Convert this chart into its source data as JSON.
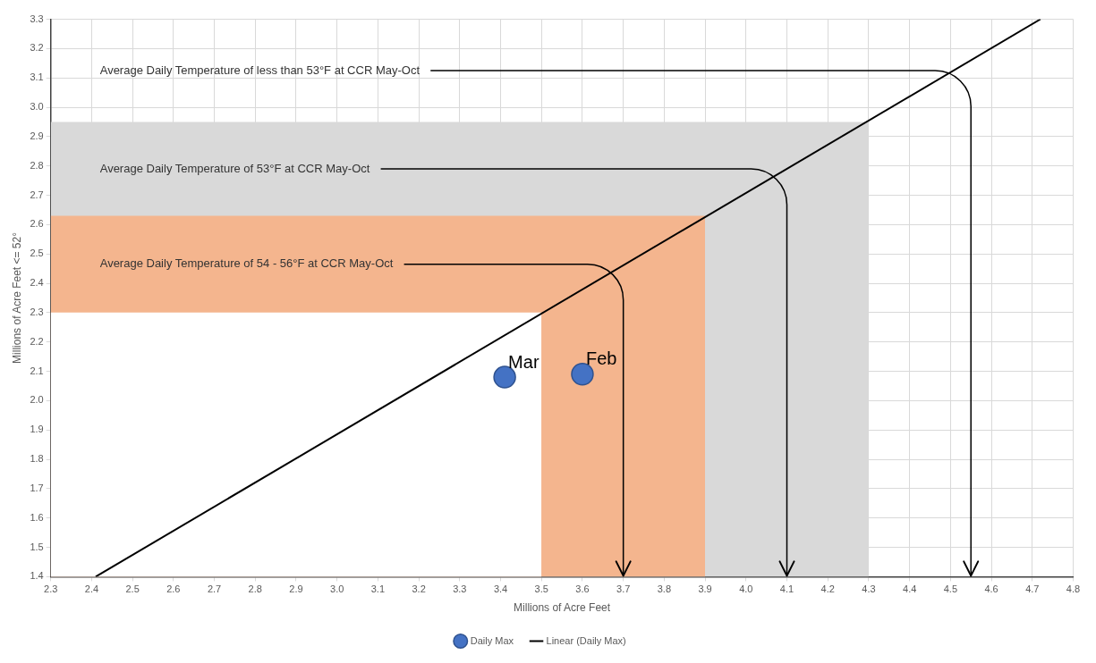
{
  "chart_data": {
    "type": "scatter",
    "xlabel": "Millions of Acre Feet",
    "ylabel": "Millions of Acre Feet <= 52°",
    "xlim": [
      2.3,
      4.8
    ],
    "ylim": [
      1.4,
      3.3
    ],
    "xticks": [
      2.3,
      2.4,
      2.5,
      2.6,
      2.7,
      2.8,
      2.9,
      {
        "value": 3,
        "label": "3.0"
      },
      3.1,
      3.2,
      3.3,
      3.4,
      3.5,
      3.6,
      3.7,
      3.8,
      3.9,
      {
        "value": 4,
        "label": "4.0"
      },
      4.1,
      4.2,
      4.3,
      4.4,
      4.5,
      4.6,
      4.7,
      4.8
    ],
    "yticks": [
      1.4,
      1.5,
      1.6,
      1.7,
      1.8,
      1.9,
      {
        "value": 2,
        "label": "2.0"
      },
      2.1,
      2.2,
      2.3,
      2.4,
      2.5,
      2.6,
      2.7,
      2.8,
      2.9,
      {
        "value": 3,
        "label": "3.0"
      },
      3.1,
      3.2,
      3.3
    ],
    "grid": true,
    "legend": "bottom",
    "marker": "circle",
    "series": [
      {
        "type": "area",
        "color": "#d9d9d9",
        "marker": "none",
        "x": [
          2.3,
          4.3
        ],
        "values": [
          2.95,
          2.95
        ]
      },
      {
        "type": "area",
        "color": "#f4b58e",
        "marker": "none",
        "x": [
          2.3,
          3.9
        ],
        "values": [
          2.63,
          2.63
        ]
      },
      {
        "type": "area",
        "color": "#ffffff",
        "marker": "none",
        "x": [
          2.3,
          3.5
        ],
        "values": [
          2.3,
          2.3
        ]
      },
      {
        "type": "line",
        "name": "Linear (Daily Max)",
        "color": "#000000",
        "x": [
          2.41,
          4.72
        ],
        "values": [
          1.4,
          3.3
        ],
        "marker": "none"
      },
      {
        "type": "scatter",
        "name": "Daily Max",
        "color": "#4472c4",
        "x": [
          3.41,
          3.6
        ],
        "values": [
          2.08,
          2.09
        ]
      }
    ],
    "annotations": [
      "Average Daily Temperature of less than 53°F at CCR May-Oct",
      "Average Daily Temperature of 53°F at CCR May-Oct",
      {
        "text": "Average Daily Temperature of 54 - 56°F at CCR May-Oct",
        "x": 3.7,
        "y": 1.4
      },
      {
        "text": "Mar",
        "x": 3.41,
        "y": 2.08
      },
      {
        "text": "Feb",
        "x": 3.6,
        "y": 2.09
      }
    ]
  }
}
